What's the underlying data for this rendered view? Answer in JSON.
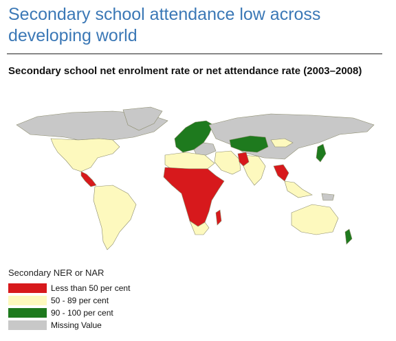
{
  "title": "Secondary school attendance low across developing world",
  "subtitle": "Secondary school net enrolment rate or net attendance rate (2003–2008)",
  "legend": {
    "title": "Secondary NER or NAR",
    "items": [
      {
        "label": "Less than 50 per cent",
        "color": "#d7191c"
      },
      {
        "label": "50 - 89 per cent",
        "color": "#fdf9be"
      },
      {
        "label": "90 - 100 per cent",
        "color": "#1e7a1e"
      },
      {
        "label": "Missing Value",
        "color": "#c8c8c8"
      }
    ]
  },
  "map": {
    "colors": {
      "low": "#d7191c",
      "mid": "#fdf9be",
      "high": "#1e7a1e",
      "missing": "#c8c8c8",
      "border": "#8a8a6a"
    }
  }
}
